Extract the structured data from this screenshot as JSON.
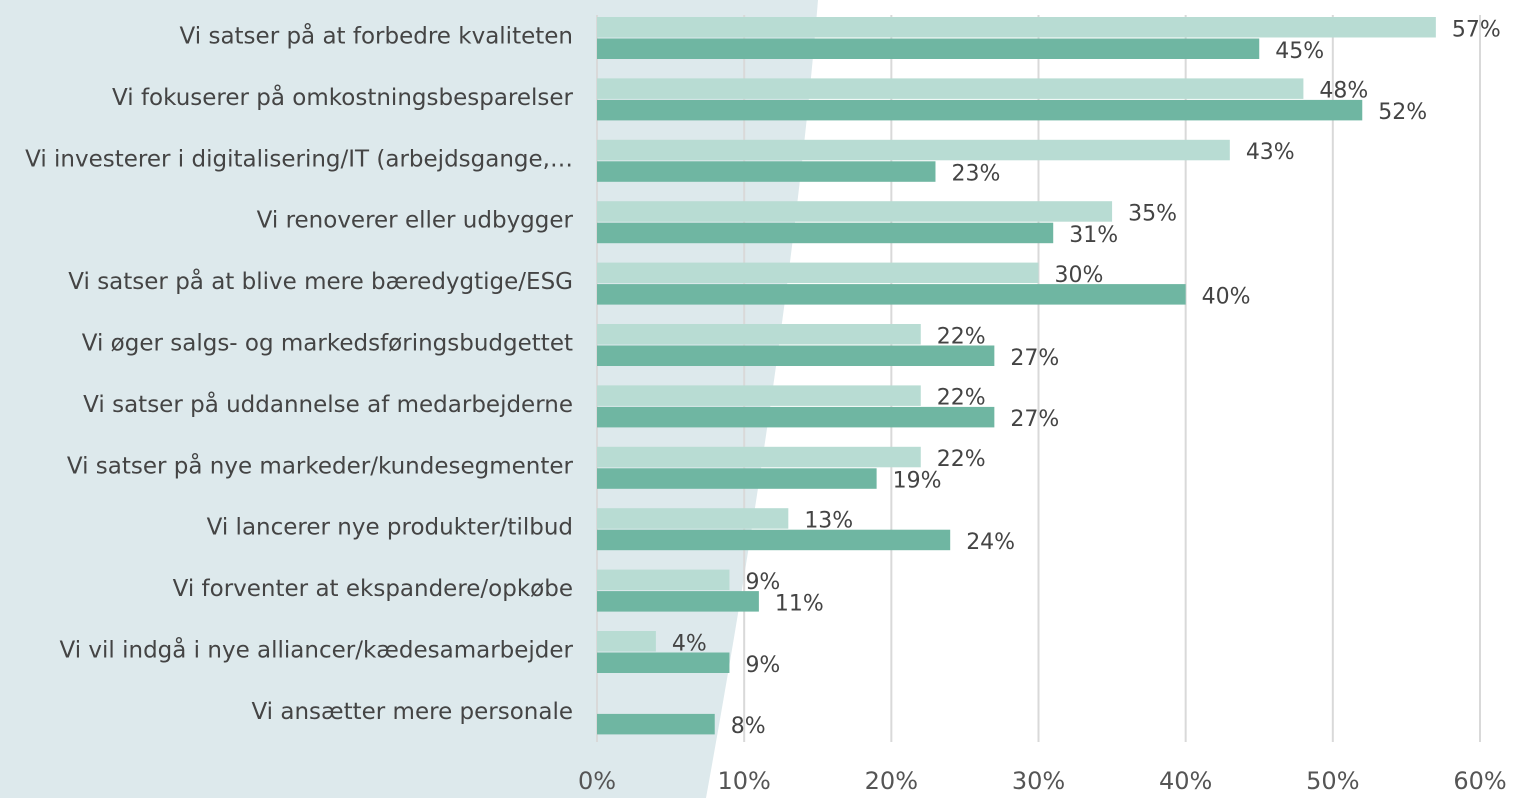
{
  "chart_data": {
    "type": "bar",
    "orientation": "horizontal",
    "categories": [
      "Vi satser på at forbedre kvaliteten",
      "Vi fokuserer på omkostningsbesparelser",
      "Vi investerer i digitalisering/IT (arbejdsgange,…",
      "Vi renoverer eller udbygger",
      "Vi satser på at blive mere bæredygtige/ESG",
      "Vi øger salgs- og markedsføringsbudgettet",
      "Vi satser på uddannelse af medarbejderne",
      "Vi satser på nye markeder/kundesegmenter",
      "Vi lancerer nye produkter/tilbud",
      "Vi forventer at ekspandere/opkøbe",
      "Vi vil indgå i nye alliancer/kædesamarbejder",
      "Vi ansætter mere personale"
    ],
    "series": [
      {
        "color": "#b8dcd3",
        "values": [
          57,
          48,
          43,
          35,
          30,
          22,
          22,
          22,
          13,
          9,
          4,
          null
        ],
        "value_labels": [
          "57%",
          "48%",
          "43%",
          "35%",
          "30%",
          "22%",
          "22%",
          "22%",
          "13%",
          "9%",
          "4%",
          null
        ]
      },
      {
        "color": "#6fb6a2",
        "values": [
          45,
          52,
          23,
          31,
          40,
          27,
          27,
          19,
          24,
          11,
          9,
          8
        ],
        "value_labels": [
          "45%",
          "52%",
          "23%",
          "31%",
          "40%",
          "27%",
          "27%",
          "19%",
          "24%",
          "11%",
          "9%",
          "8%"
        ]
      }
    ],
    "xlim": [
      0,
      60
    ],
    "xticks": [
      {
        "value": 0,
        "label": "0%"
      },
      {
        "value": 10,
        "label": "10%"
      },
      {
        "value": 20,
        "label": "20%"
      },
      {
        "value": 30,
        "label": "30%"
      },
      {
        "value": 40,
        "label": "40%"
      },
      {
        "value": 50,
        "label": "50%"
      },
      {
        "value": 60,
        "label": "60%"
      }
    ],
    "grid": true
  }
}
